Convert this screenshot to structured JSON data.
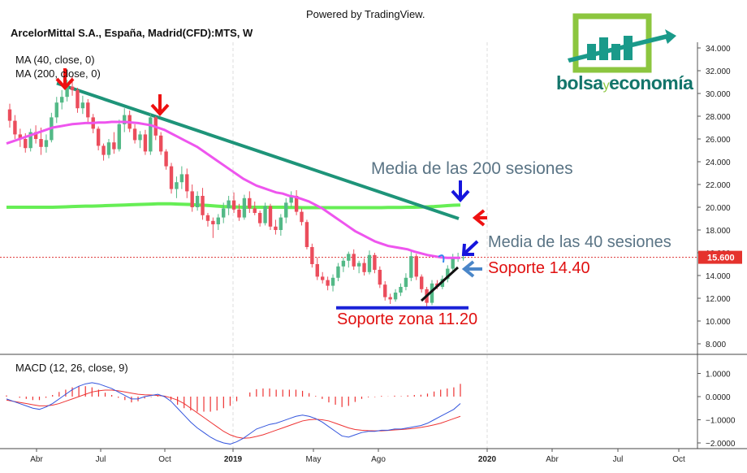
{
  "header": {
    "powered_by": "Powered by TradingView.",
    "title": "ArcelorMittal S.A., España, Madrid(CFD):MTS, W"
  },
  "logo": {
    "text_left": "bolsa",
    "text_mid": "y",
    "text_right": "economía",
    "colors": {
      "green": "#8cc63f",
      "teal": "#1a9a8a",
      "dark_teal": "#13756b"
    }
  },
  "legend": {
    "ma40": "MA (40, close, 0)",
    "ma200": "MA (200, close, 0)",
    "macd": "MACD (12, 26, close, 9)"
  },
  "price_axis": {
    "ticks": [
      "34.000",
      "32.000",
      "30.000",
      "28.000",
      "26.000",
      "24.000",
      "22.000",
      "20.000",
      "18.000",
      "16.000",
      "14.000",
      "12.000",
      "10.000",
      "8.000"
    ],
    "tick_values": [
      34,
      32,
      30,
      28,
      26,
      24,
      22,
      20,
      18,
      16,
      14,
      12,
      10,
      8
    ],
    "current_price_label": "15.600",
    "current_price": 15.6
  },
  "macd_axis": {
    "ticks": [
      "1.0000",
      "0.0000",
      "−1.0000",
      "−2.0000"
    ],
    "tick_values": [
      1,
      0,
      -1,
      -2
    ]
  },
  "time_axis": {
    "labels": [
      "Abr",
      "Jul",
      "Oct",
      "2019",
      "May",
      "Ago",
      "2020",
      "Abr",
      "Jul",
      "Oct"
    ],
    "bold": [
      false,
      false,
      false,
      true,
      false,
      false,
      true,
      false,
      false,
      false
    ]
  },
  "annotations": {
    "media200": "Media de las 200 sesiones",
    "media40": "Media de las 40 sesiones",
    "soporte1440": "Soporte 14.40",
    "soporte1120": "Soporte zona 11.20"
  },
  "colors": {
    "up": "#53b987",
    "down": "#eb4d5c",
    "ma40": "#ee55ee",
    "ma200": "#66ee55",
    "trend": "#1e9479",
    "support": "#1a22d8",
    "arrow_red": "#ee1111",
    "arrow_blue": "#1515dd",
    "arrow_lightblue": "#4a86c8",
    "annot_gray": "#5a7485",
    "annot_red": "#e01010",
    "macd_line": "#3355dd",
    "signal_line": "#ee3333"
  },
  "chart_data": {
    "type": "candlestick",
    "title": "ArcelorMittal S.A., España, Madrid(CFD):MTS, W",
    "interval": "weekly",
    "ylim": [
      7,
      35
    ],
    "series": [
      {
        "name": "MA (40, close, 0)",
        "values": [
          25.6,
          25.8,
          26.0,
          26.2,
          26.4,
          26.6,
          26.8,
          27.0,
          27.1,
          27.2,
          27.3,
          27.35,
          27.4,
          27.4,
          27.45,
          27.45,
          27.5,
          27.5,
          27.5,
          27.45,
          27.4,
          27.3,
          27.2,
          27.0,
          26.8,
          26.5,
          26.2,
          25.9,
          25.6,
          25.3,
          24.9,
          24.5,
          24.1,
          23.7,
          23.3,
          22.9,
          22.5,
          22.2,
          21.9,
          21.7,
          21.5,
          21.3,
          21.2,
          21.0,
          20.9,
          20.7,
          20.5,
          20.2,
          19.9,
          19.5,
          19.1,
          18.7,
          18.3,
          17.9,
          17.6,
          17.3,
          17.0,
          16.8,
          16.6,
          16.5,
          16.4,
          16.3,
          16.1,
          15.95,
          15.8,
          15.7,
          15.6,
          15.55,
          15.55,
          15.55
        ]
      },
      {
        "name": "MA (200, close, 0)",
        "values": [
          20.0,
          20.0,
          20.0,
          20.0,
          20.0,
          20.0,
          20.0,
          20.0,
          20.02,
          20.04,
          20.06,
          20.08,
          20.1,
          20.1,
          20.12,
          20.14,
          20.16,
          20.18,
          20.2,
          20.22,
          20.24,
          20.26,
          20.28,
          20.3,
          20.3,
          20.3,
          20.28,
          20.26,
          20.24,
          20.2,
          20.18,
          20.14,
          20.1,
          20.06,
          20.04,
          20.02,
          20.0,
          20.0,
          20.0,
          20.0,
          20.0,
          20.0,
          20.0,
          19.98,
          19.98,
          19.96,
          19.96,
          19.96,
          19.96,
          19.96,
          19.96,
          19.96,
          19.96,
          19.96,
          19.96,
          19.96,
          19.96,
          19.96,
          19.98,
          19.98,
          19.98,
          20.0,
          20.0,
          20.02,
          20.04,
          20.06,
          20.1,
          20.14,
          20.18,
          20.2
        ]
      },
      {
        "name": "MACD",
        "values": [
          -0.1,
          -0.2,
          -0.3,
          -0.4,
          -0.5,
          -0.55,
          -0.45,
          -0.3,
          -0.1,
          0.1,
          0.3,
          0.45,
          0.55,
          0.6,
          0.55,
          0.45,
          0.35,
          0.2,
          0.05,
          -0.1,
          -0.1,
          0.0,
          0.05,
          0.1,
          0.0,
          -0.2,
          -0.5,
          -0.8,
          -1.1,
          -1.35,
          -1.55,
          -1.75,
          -1.9,
          -2.0,
          -2.05,
          -1.95,
          -1.8,
          -1.6,
          -1.4,
          -1.3,
          -1.2,
          -1.15,
          -1.05,
          -0.95,
          -0.85,
          -0.8,
          -0.85,
          -0.95,
          -1.1,
          -1.3,
          -1.5,
          -1.7,
          -1.75,
          -1.65,
          -1.55,
          -1.5,
          -1.5,
          -1.45,
          -1.45,
          -1.4,
          -1.4,
          -1.35,
          -1.3,
          -1.25,
          -1.15,
          -1.0,
          -0.85,
          -0.7,
          -0.55,
          -0.3
        ]
      },
      {
        "name": "Signal",
        "values": [
          -0.15,
          -0.2,
          -0.25,
          -0.3,
          -0.35,
          -0.4,
          -0.4,
          -0.37,
          -0.3,
          -0.2,
          -0.1,
          0.0,
          0.1,
          0.2,
          0.25,
          0.28,
          0.28,
          0.25,
          0.2,
          0.15,
          0.1,
          0.08,
          0.07,
          0.05,
          0.02,
          -0.05,
          -0.15,
          -0.3,
          -0.5,
          -0.7,
          -0.9,
          -1.1,
          -1.3,
          -1.5,
          -1.65,
          -1.75,
          -1.8,
          -1.78,
          -1.72,
          -1.65,
          -1.55,
          -1.45,
          -1.35,
          -1.25,
          -1.15,
          -1.05,
          -1.0,
          -0.98,
          -1.0,
          -1.05,
          -1.15,
          -1.25,
          -1.35,
          -1.42,
          -1.45,
          -1.47,
          -1.48,
          -1.48,
          -1.46,
          -1.44,
          -1.42,
          -1.4,
          -1.37,
          -1.33,
          -1.28,
          -1.22,
          -1.15,
          -1.05,
          -0.95,
          -0.85
        ]
      }
    ],
    "ohlc": [
      [
        28.6,
        29.1,
        27.0,
        27.6
      ],
      [
        27.6,
        28.1,
        26.0,
        26.4
      ],
      [
        26.4,
        26.9,
        25.3,
        26.0
      ],
      [
        26.0,
        26.5,
        24.8,
        25.2
      ],
      [
        25.2,
        26.9,
        24.9,
        26.6
      ],
      [
        26.6,
        27.2,
        25.6,
        26.0
      ],
      [
        26.0,
        27.0,
        24.6,
        25.3
      ],
      [
        25.3,
        26.4,
        24.8,
        25.9
      ],
      [
        25.9,
        28.3,
        25.7,
        27.9
      ],
      [
        27.9,
        29.7,
        27.4,
        29.2
      ],
      [
        29.2,
        30.3,
        28.6,
        29.7
      ],
      [
        29.7,
        31.2,
        29.3,
        30.6
      ],
      [
        30.6,
        31.5,
        29.8,
        30.3
      ],
      [
        30.3,
        30.5,
        28.3,
        28.7
      ],
      [
        28.7,
        29.8,
        28.2,
        29.2
      ],
      [
        29.2,
        29.5,
        27.5,
        27.9
      ],
      [
        27.9,
        28.2,
        26.5,
        26.9
      ],
      [
        26.9,
        27.1,
        25.0,
        25.4
      ],
      [
        25.4,
        25.6,
        24.1,
        24.6
      ],
      [
        24.6,
        26.0,
        24.3,
        25.7
      ],
      [
        25.7,
        26.6,
        24.7,
        25.1
      ],
      [
        25.1,
        27.7,
        24.9,
        27.3
      ],
      [
        27.3,
        28.7,
        26.6,
        28.1
      ],
      [
        28.1,
        28.5,
        26.6,
        26.9
      ],
      [
        26.9,
        27.3,
        25.6,
        25.9
      ],
      [
        25.9,
        26.7,
        25.2,
        26.4
      ],
      [
        26.4,
        26.8,
        24.6,
        24.9
      ],
      [
        24.9,
        28.3,
        24.6,
        27.9
      ],
      [
        27.9,
        28.0,
        25.9,
        26.3
      ],
      [
        26.3,
        26.6,
        24.6,
        24.9
      ],
      [
        24.9,
        25.1,
        23.3,
        23.6
      ],
      [
        23.6,
        23.9,
        21.2,
        21.6
      ],
      [
        21.6,
        22.7,
        20.8,
        22.2
      ],
      [
        22.2,
        23.6,
        21.6,
        22.9
      ],
      [
        22.9,
        23.4,
        20.8,
        21.4
      ],
      [
        21.4,
        22.0,
        19.6,
        20.0
      ],
      [
        20.0,
        21.4,
        19.7,
        21.0
      ],
      [
        21.0,
        21.7,
        18.9,
        19.3
      ],
      [
        19.3,
        19.5,
        18.3,
        18.8
      ],
      [
        18.8,
        19.1,
        17.3,
        18.5
      ],
      [
        18.5,
        19.4,
        18.0,
        19.1
      ],
      [
        19.1,
        20.4,
        18.6,
        19.9
      ],
      [
        19.9,
        21.0,
        19.3,
        20.6
      ],
      [
        20.6,
        21.3,
        19.5,
        19.8
      ],
      [
        19.8,
        20.3,
        18.8,
        19.1
      ],
      [
        19.1,
        21.1,
        18.9,
        20.8
      ],
      [
        20.8,
        21.4,
        19.5,
        19.9
      ],
      [
        19.9,
        20.5,
        19.3,
        19.5
      ],
      [
        19.5,
        19.7,
        18.3,
        18.6
      ],
      [
        18.6,
        20.4,
        18.4,
        20.1
      ],
      [
        20.1,
        20.3,
        18.0,
        18.3
      ],
      [
        18.3,
        18.9,
        17.6,
        18.0
      ],
      [
        18.0,
        19.4,
        17.5,
        19.1
      ],
      [
        19.1,
        20.8,
        18.6,
        20.4
      ],
      [
        20.4,
        21.4,
        20.0,
        21.0
      ],
      [
        21.0,
        21.5,
        19.3,
        19.6
      ],
      [
        19.6,
        19.9,
        18.4,
        18.7
      ],
      [
        18.7,
        18.9,
        16.3,
        16.5
      ],
      [
        16.5,
        16.8,
        14.7,
        15.0
      ],
      [
        15.0,
        15.6,
        13.6,
        13.9
      ],
      [
        13.9,
        14.3,
        13.3,
        13.6
      ],
      [
        13.6,
        13.9,
        12.7,
        13.1
      ],
      [
        13.1,
        14.1,
        12.6,
        13.8
      ],
      [
        13.8,
        15.1,
        13.5,
        14.8
      ],
      [
        14.8,
        15.6,
        14.3,
        15.3
      ],
      [
        15.3,
        16.1,
        14.7,
        15.9
      ],
      [
        15.9,
        16.3,
        14.5,
        14.8
      ],
      [
        14.8,
        15.3,
        14.2,
        15.1
      ],
      [
        15.1,
        15.5,
        14.0,
        14.3
      ],
      [
        14.3,
        16.2,
        14.1,
        15.8
      ],
      [
        15.8,
        16.0,
        14.2,
        14.5
      ],
      [
        14.5,
        14.8,
        12.9,
        13.2
      ],
      [
        13.2,
        13.5,
        11.8,
        12.1
      ],
      [
        12.1,
        12.4,
        11.5,
        11.9
      ],
      [
        11.9,
        12.8,
        11.7,
        12.5
      ],
      [
        12.5,
        13.3,
        12.2,
        13.0
      ],
      [
        13.0,
        14.2,
        12.7,
        13.8
      ],
      [
        13.8,
        16.1,
        13.5,
        15.7
      ],
      [
        15.7,
        15.9,
        13.6,
        13.9
      ],
      [
        13.9,
        14.1,
        12.5,
        12.8
      ],
      [
        12.8,
        13.0,
        11.3,
        11.6
      ],
      [
        11.6,
        13.6,
        11.4,
        13.3
      ],
      [
        13.3,
        13.6,
        12.8,
        13.0
      ],
      [
        13.0,
        14.0,
        12.8,
        13.7
      ],
      [
        13.7,
        14.9,
        13.4,
        14.6
      ],
      [
        14.6,
        15.9,
        14.4,
        15.6
      ],
      [
        15.6,
        16.0,
        15.2,
        15.6
      ],
      [
        15.6,
        16.0,
        15.3,
        15.6
      ]
    ],
    "histogram": [
      0.05,
      0.0,
      -0.05,
      -0.1,
      -0.15,
      -0.15,
      -0.05,
      0.07,
      0.2,
      0.3,
      0.4,
      0.45,
      0.45,
      0.4,
      0.3,
      0.17,
      0.07,
      -0.05,
      -0.15,
      -0.25,
      -0.2,
      -0.08,
      -0.02,
      0.05,
      -0.02,
      -0.15,
      -0.35,
      -0.5,
      -0.6,
      -0.65,
      -0.65,
      -0.65,
      -0.6,
      -0.5,
      -0.4,
      -0.2,
      0.0,
      0.18,
      0.32,
      0.35,
      0.35,
      0.3,
      0.3,
      0.3,
      0.3,
      0.25,
      0.15,
      0.03,
      -0.1,
      -0.25,
      -0.35,
      -0.45,
      -0.4,
      -0.23,
      -0.1,
      -0.03,
      -0.02,
      0.03,
      0.01,
      0.04,
      0.02,
      0.05,
      0.07,
      0.08,
      0.13,
      0.22,
      0.3,
      0.35,
      0.4,
      0.55
    ],
    "trendline": {
      "from_price": 30.9,
      "to_price": 19.0
    },
    "support_levels": [
      14.4,
      11.2
    ]
  }
}
